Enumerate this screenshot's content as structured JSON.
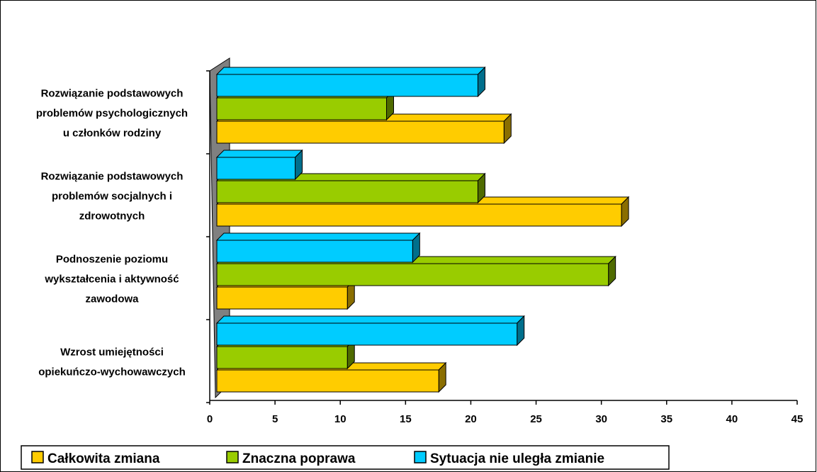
{
  "chart_data": {
    "type": "bar",
    "orientation": "horizontal",
    "style": "3d",
    "categories": [
      "Rozwiązanie podstawowych problemów psychologicznych u członków rodziny",
      "Rozwiązanie podstawowych problemów socjalnych i zdrowotnych",
      "Podnoszenie poziomu wykształcenia i aktywność zawodowa",
      "Wzrost umiejętności opiekuńczo-wychowawczych"
    ],
    "category_lines": [
      [
        "Rozwiązanie podstawowych",
        "problemów psychologicznych",
        "u członków rodziny"
      ],
      [
        "Rozwiązanie podstawowych",
        "problemów socjalnych i",
        "zdrowotnych"
      ],
      [
        "Podnoszenie poziomu",
        "wykształcenia i aktywność",
        "zawodowa"
      ],
      [
        "Wzrost umiejętności",
        "opiekuńczo-wychowawczych"
      ]
    ],
    "series": [
      {
        "name": "Całkowita zmiana",
        "values": [
          22,
          31,
          10,
          17
        ],
        "color": "#ffcc00",
        "side_color": "#8a6e00"
      },
      {
        "name": "Znaczna poprawa",
        "values": [
          13,
          20,
          30,
          10
        ],
        "color": "#99cc00",
        "side_color": "#4f6b00"
      },
      {
        "name": "Sytuacja nie uległa zmianie",
        "values": [
          20,
          6,
          15,
          23
        ],
        "color": "#00ccff",
        "side_color": "#006f8c"
      }
    ],
    "xticks": [
      "0",
      "5",
      "10",
      "15",
      "20",
      "25",
      "30",
      "35",
      "40",
      "45"
    ],
    "xlim": [
      0,
      45
    ],
    "grid": false,
    "legend_position": "bottom-left",
    "wall_color": "#808080",
    "title": "",
    "xlabel": "",
    "ylabel": ""
  }
}
